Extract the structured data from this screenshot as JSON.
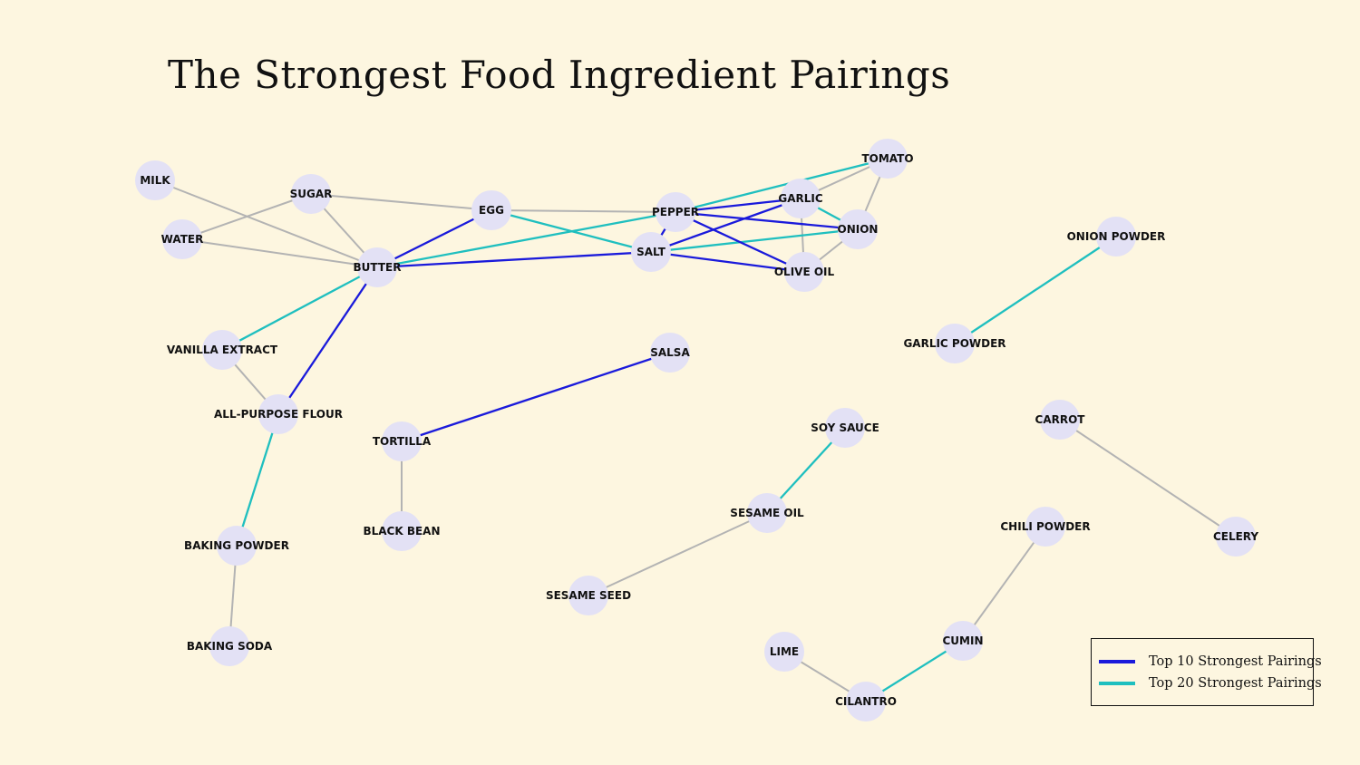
{
  "title": "The Strongest Food Ingredient Pairings",
  "colors": {
    "top10": "#1a1adb",
    "top20": "#1fbfbf",
    "other": "#b3b3b3",
    "node": "#e3e1f5",
    "background": "#fdf6e0"
  },
  "legend": {
    "top10_label": "Top 10 Strongest Pairings",
    "top20_label": "Top 20 Strongest Pairings"
  },
  "nodes": [
    {
      "id": "milk",
      "label": "MILK"
    },
    {
      "id": "sugar",
      "label": "SUGAR"
    },
    {
      "id": "water",
      "label": "WATER"
    },
    {
      "id": "egg",
      "label": "EGG"
    },
    {
      "id": "butter",
      "label": "BUTTER"
    },
    {
      "id": "pepper",
      "label": "PEPPER"
    },
    {
      "id": "garlic",
      "label": "GARLIC"
    },
    {
      "id": "tomato",
      "label": "TOMATO"
    },
    {
      "id": "onion",
      "label": "ONION"
    },
    {
      "id": "salt",
      "label": "SALT"
    },
    {
      "id": "olive_oil",
      "label": "OLIVE OIL"
    },
    {
      "id": "onion_powder",
      "label": "ONION POWDER"
    },
    {
      "id": "garlic_powder",
      "label": "GARLIC POWDER"
    },
    {
      "id": "vanilla_extract",
      "label": "VANILLA EXTRACT"
    },
    {
      "id": "salsa",
      "label": "SALSA"
    },
    {
      "id": "all_purpose_flour",
      "label": "ALL-PURPOSE FLOUR"
    },
    {
      "id": "tortilla",
      "label": "TORTILLA"
    },
    {
      "id": "soy_sauce",
      "label": "SOY SAUCE"
    },
    {
      "id": "carrot",
      "label": "CARROT"
    },
    {
      "id": "sesame_oil",
      "label": "SESAME OIL"
    },
    {
      "id": "black_bean",
      "label": "BLACK BEAN"
    },
    {
      "id": "chili_powder",
      "label": "CHILI POWDER"
    },
    {
      "id": "celery",
      "label": "CELERY"
    },
    {
      "id": "baking_powder",
      "label": "BAKING POWDER"
    },
    {
      "id": "sesame_seed",
      "label": "SESAME SEED"
    },
    {
      "id": "baking_soda",
      "label": "BAKING SODA"
    },
    {
      "id": "cumin",
      "label": "CUMIN"
    },
    {
      "id": "lime",
      "label": "LIME"
    },
    {
      "id": "cilantro",
      "label": "CILANTRO"
    }
  ],
  "edges": [
    {
      "source": "milk",
      "target": "butter",
      "tier": "other"
    },
    {
      "source": "sugar",
      "target": "butter",
      "tier": "other"
    },
    {
      "source": "sugar",
      "target": "water",
      "tier": "other"
    },
    {
      "source": "sugar",
      "target": "egg",
      "tier": "other"
    },
    {
      "source": "water",
      "target": "butter",
      "tier": "other"
    },
    {
      "source": "egg",
      "target": "pepper",
      "tier": "other"
    },
    {
      "source": "garlic",
      "target": "tomato",
      "tier": "other"
    },
    {
      "source": "tomato",
      "target": "onion",
      "tier": "other"
    },
    {
      "source": "garlic",
      "target": "olive_oil",
      "tier": "other"
    },
    {
      "source": "onion",
      "target": "olive_oil",
      "tier": "other"
    },
    {
      "source": "vanilla_extract",
      "target": "all_purpose_flour",
      "tier": "other"
    },
    {
      "source": "tortilla",
      "target": "black_bean",
      "tier": "other"
    },
    {
      "source": "baking_powder",
      "target": "baking_soda",
      "tier": "other"
    },
    {
      "source": "sesame_oil",
      "target": "sesame_seed",
      "tier": "other"
    },
    {
      "source": "carrot",
      "target": "celery",
      "tier": "other"
    },
    {
      "source": "chili_powder",
      "target": "cumin",
      "tier": "other"
    },
    {
      "source": "lime",
      "target": "cilantro",
      "tier": "other"
    },
    {
      "source": "egg",
      "target": "salt",
      "tier": "top20"
    },
    {
      "source": "butter",
      "target": "pepper",
      "tier": "top20"
    },
    {
      "source": "pepper",
      "target": "tomato",
      "tier": "top20"
    },
    {
      "source": "garlic",
      "target": "onion",
      "tier": "top20"
    },
    {
      "source": "salt",
      "target": "onion",
      "tier": "top20"
    },
    {
      "source": "butter",
      "target": "vanilla_extract",
      "tier": "top20"
    },
    {
      "source": "all_purpose_flour",
      "target": "baking_powder",
      "tier": "top20"
    },
    {
      "source": "onion_powder",
      "target": "garlic_powder",
      "tier": "top20"
    },
    {
      "source": "soy_sauce",
      "target": "sesame_oil",
      "tier": "top20"
    },
    {
      "source": "cumin",
      "target": "cilantro",
      "tier": "top20"
    },
    {
      "source": "butter",
      "target": "egg",
      "tier": "top10"
    },
    {
      "source": "butter",
      "target": "salt",
      "tier": "top10"
    },
    {
      "source": "butter",
      "target": "all_purpose_flour",
      "tier": "top10"
    },
    {
      "source": "pepper",
      "target": "salt",
      "tier": "top10"
    },
    {
      "source": "pepper",
      "target": "garlic",
      "tier": "top10"
    },
    {
      "source": "pepper",
      "target": "onion",
      "tier": "top10"
    },
    {
      "source": "pepper",
      "target": "olive_oil",
      "tier": "top10"
    },
    {
      "source": "salt",
      "target": "garlic",
      "tier": "top10"
    },
    {
      "source": "salt",
      "target": "olive_oil",
      "tier": "top10"
    },
    {
      "source": "tortilla",
      "target": "salsa",
      "tier": "top10"
    }
  ]
}
